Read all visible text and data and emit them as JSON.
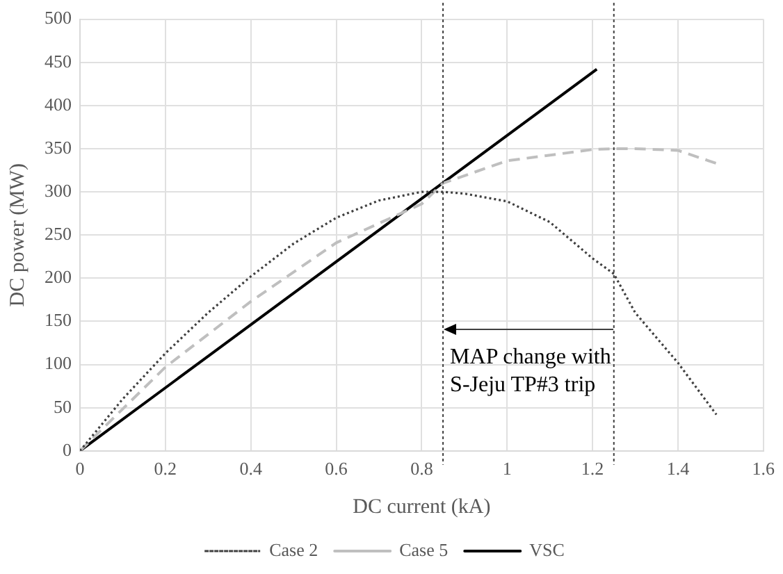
{
  "chart_data": {
    "type": "line",
    "xlabel": "DC current (kA)",
    "ylabel": "DC power (MW)",
    "xlim": [
      0,
      1.6
    ],
    "xticks": [
      0,
      0.2,
      0.4,
      0.6,
      0.8,
      1,
      1.2,
      1.4,
      1.6
    ],
    "ylim": [
      0,
      500
    ],
    "yticks": [
      0,
      50,
      100,
      150,
      200,
      250,
      300,
      350,
      400,
      450,
      500
    ],
    "grid": true,
    "legend": "bottom",
    "marker": "none",
    "series": [
      {
        "name": "Case 2",
        "color": "#404040",
        "line_style": "dotted",
        "x": [
          0,
          0.1,
          0.2,
          0.3,
          0.4,
          0.5,
          0.6,
          0.7,
          0.8,
          0.85,
          0.9,
          1,
          1.1,
          1.2,
          1.25,
          1.3,
          1.4,
          1.49
        ],
        "values": [
          0,
          60,
          113,
          160,
          202,
          240,
          270,
          290,
          300,
          300,
          298,
          289,
          265,
          223,
          205,
          160,
          102,
          42
        ]
      },
      {
        "name": "Case 5",
        "color": "#bfbfbf",
        "line_style": "dashed",
        "x": [
          0,
          0.2,
          0.4,
          0.6,
          0.8,
          0.85,
          1,
          1.2,
          1.25,
          1.3,
          1.4,
          1.49
        ],
        "values": [
          0,
          97,
          173,
          241,
          286,
          310,
          336,
          349,
          350,
          350,
          348,
          333
        ]
      },
      {
        "name": "VSC",
        "color": "#000000",
        "line_style": "solid",
        "x": [
          0,
          1.21
        ],
        "values": [
          0,
          442
        ]
      }
    ],
    "ref_lines": [
      {
        "axis": "x",
        "value": 0.85,
        "color": "#404040",
        "line_style": "dashed"
      },
      {
        "axis": "x",
        "value": 1.25,
        "color": "#404040",
        "line_style": "dashed"
      }
    ],
    "annotations": [
      {
        "text": "MAP change with\nS-Jeju TP#3 trip",
        "x": 0.85,
        "y": 140
      }
    ]
  }
}
